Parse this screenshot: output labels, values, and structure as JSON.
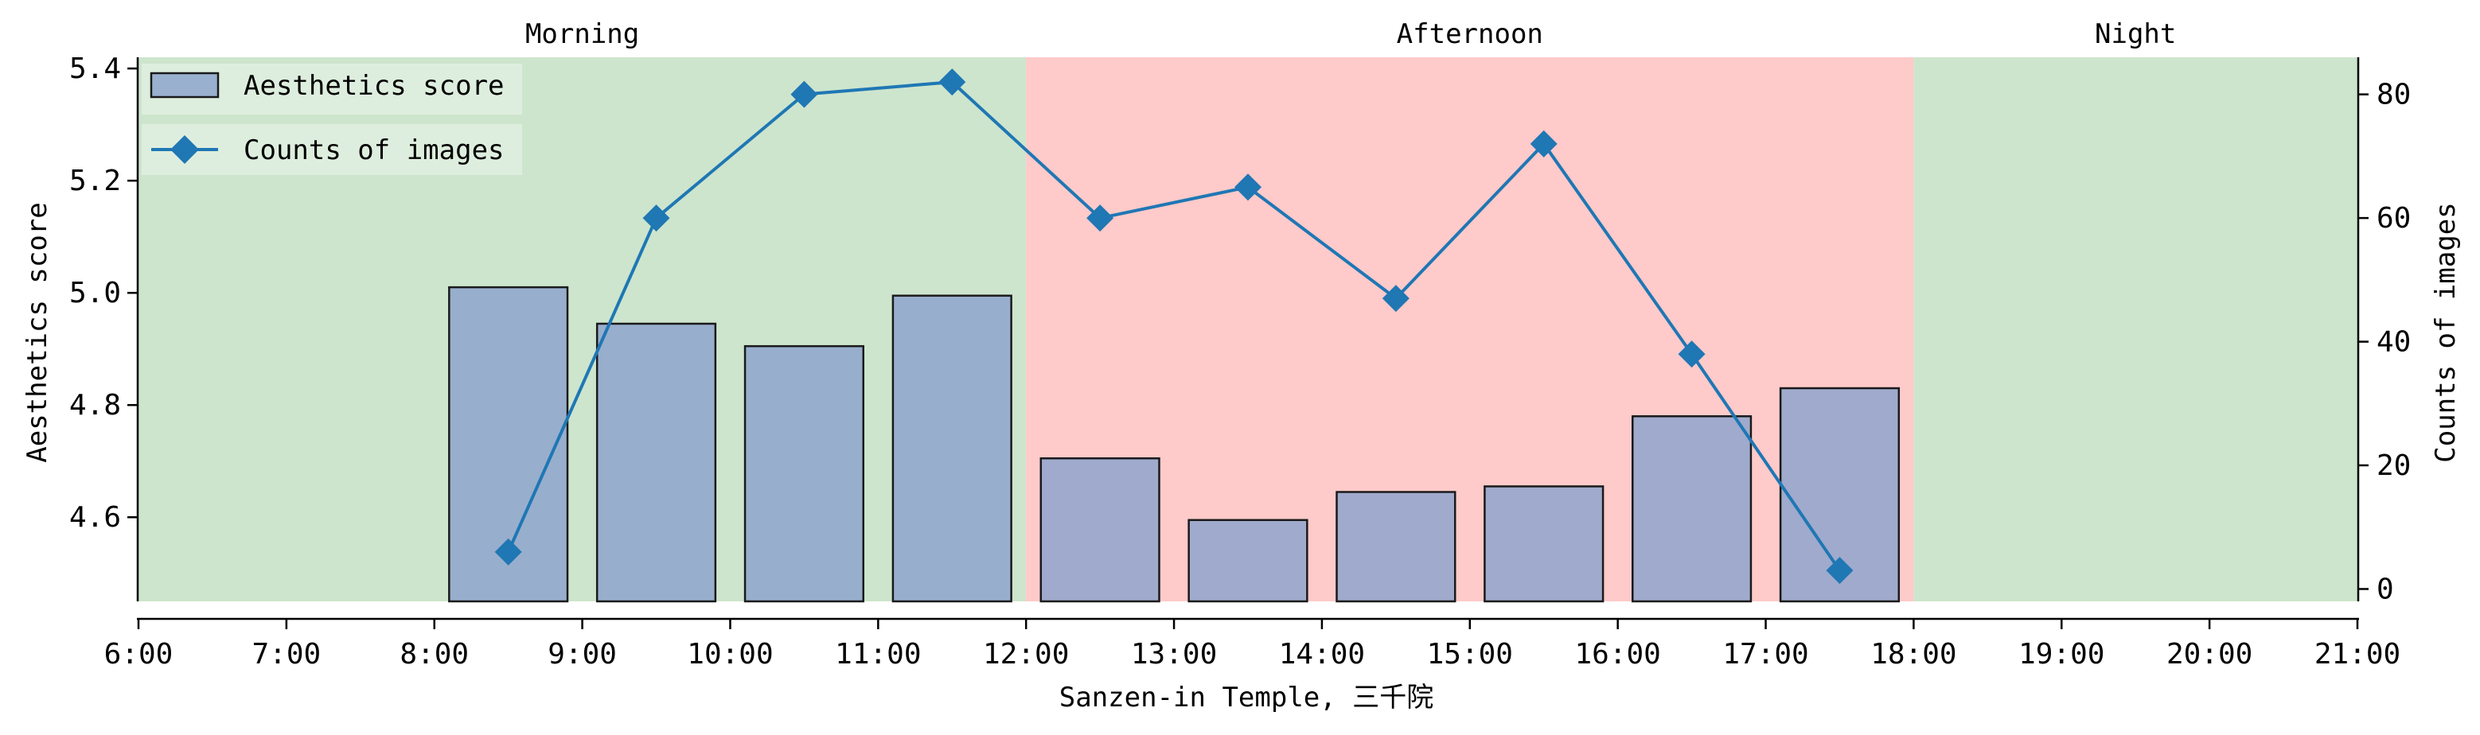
{
  "chart_data": {
    "type": "bar",
    "xlabel": "Sanzen-in Temple, 三千院",
    "ylabel": "Aesthetics score",
    "y2label": "Counts of images",
    "xlim": [
      6,
      21
    ],
    "ylim": [
      4.45,
      5.42
    ],
    "y2lim": [
      -2,
      86
    ],
    "x_tick_labels": [
      "6:00",
      "7:00",
      "8:00",
      "9:00",
      "10:00",
      "11:00",
      "12:00",
      "13:00",
      "14:00",
      "15:00",
      "16:00",
      "17:00",
      "18:00",
      "19:00",
      "20:00",
      "21:00"
    ],
    "y_ticks": [
      4.6,
      4.8,
      5.0,
      5.2,
      5.4
    ],
    "y_tick_labels": [
      "4.6",
      "4.8",
      "5.0",
      "5.2",
      "5.4"
    ],
    "y2_ticks": [
      0,
      20,
      40,
      60,
      80
    ],
    "y2_tick_labels": [
      "0",
      "20",
      "40",
      "60",
      "80"
    ],
    "periods": [
      {
        "label": "Morning",
        "start": 6,
        "end": 12,
        "color": "#cde5cd"
      },
      {
        "label": "Afternoon",
        "start": 12,
        "end": 18,
        "color": "#fecaca"
      },
      {
        "label": "Night",
        "start": 18,
        "end": 21,
        "color": "#cde5cd"
      }
    ],
    "bars": {
      "name": "Aesthetics score",
      "x": [
        8.5,
        9.5,
        10.5,
        11.5,
        12.5,
        13.5,
        14.5,
        15.5,
        16.5,
        17.5
      ],
      "values": [
        5.01,
        4.945,
        4.905,
        4.995,
        4.705,
        4.595,
        4.645,
        4.655,
        4.78,
        4.83
      ],
      "color": "#8ea5cc"
    },
    "line": {
      "name": "Counts of images",
      "x": [
        8.5,
        9.5,
        10.5,
        11.5,
        12.5,
        13.5,
        14.5,
        15.5,
        16.5,
        17.5
      ],
      "values": [
        6,
        60,
        80,
        82,
        60,
        65,
        47,
        72,
        38,
        3
      ],
      "color": "#1f77b4"
    },
    "legend_position": "top-left",
    "grid": false
  }
}
